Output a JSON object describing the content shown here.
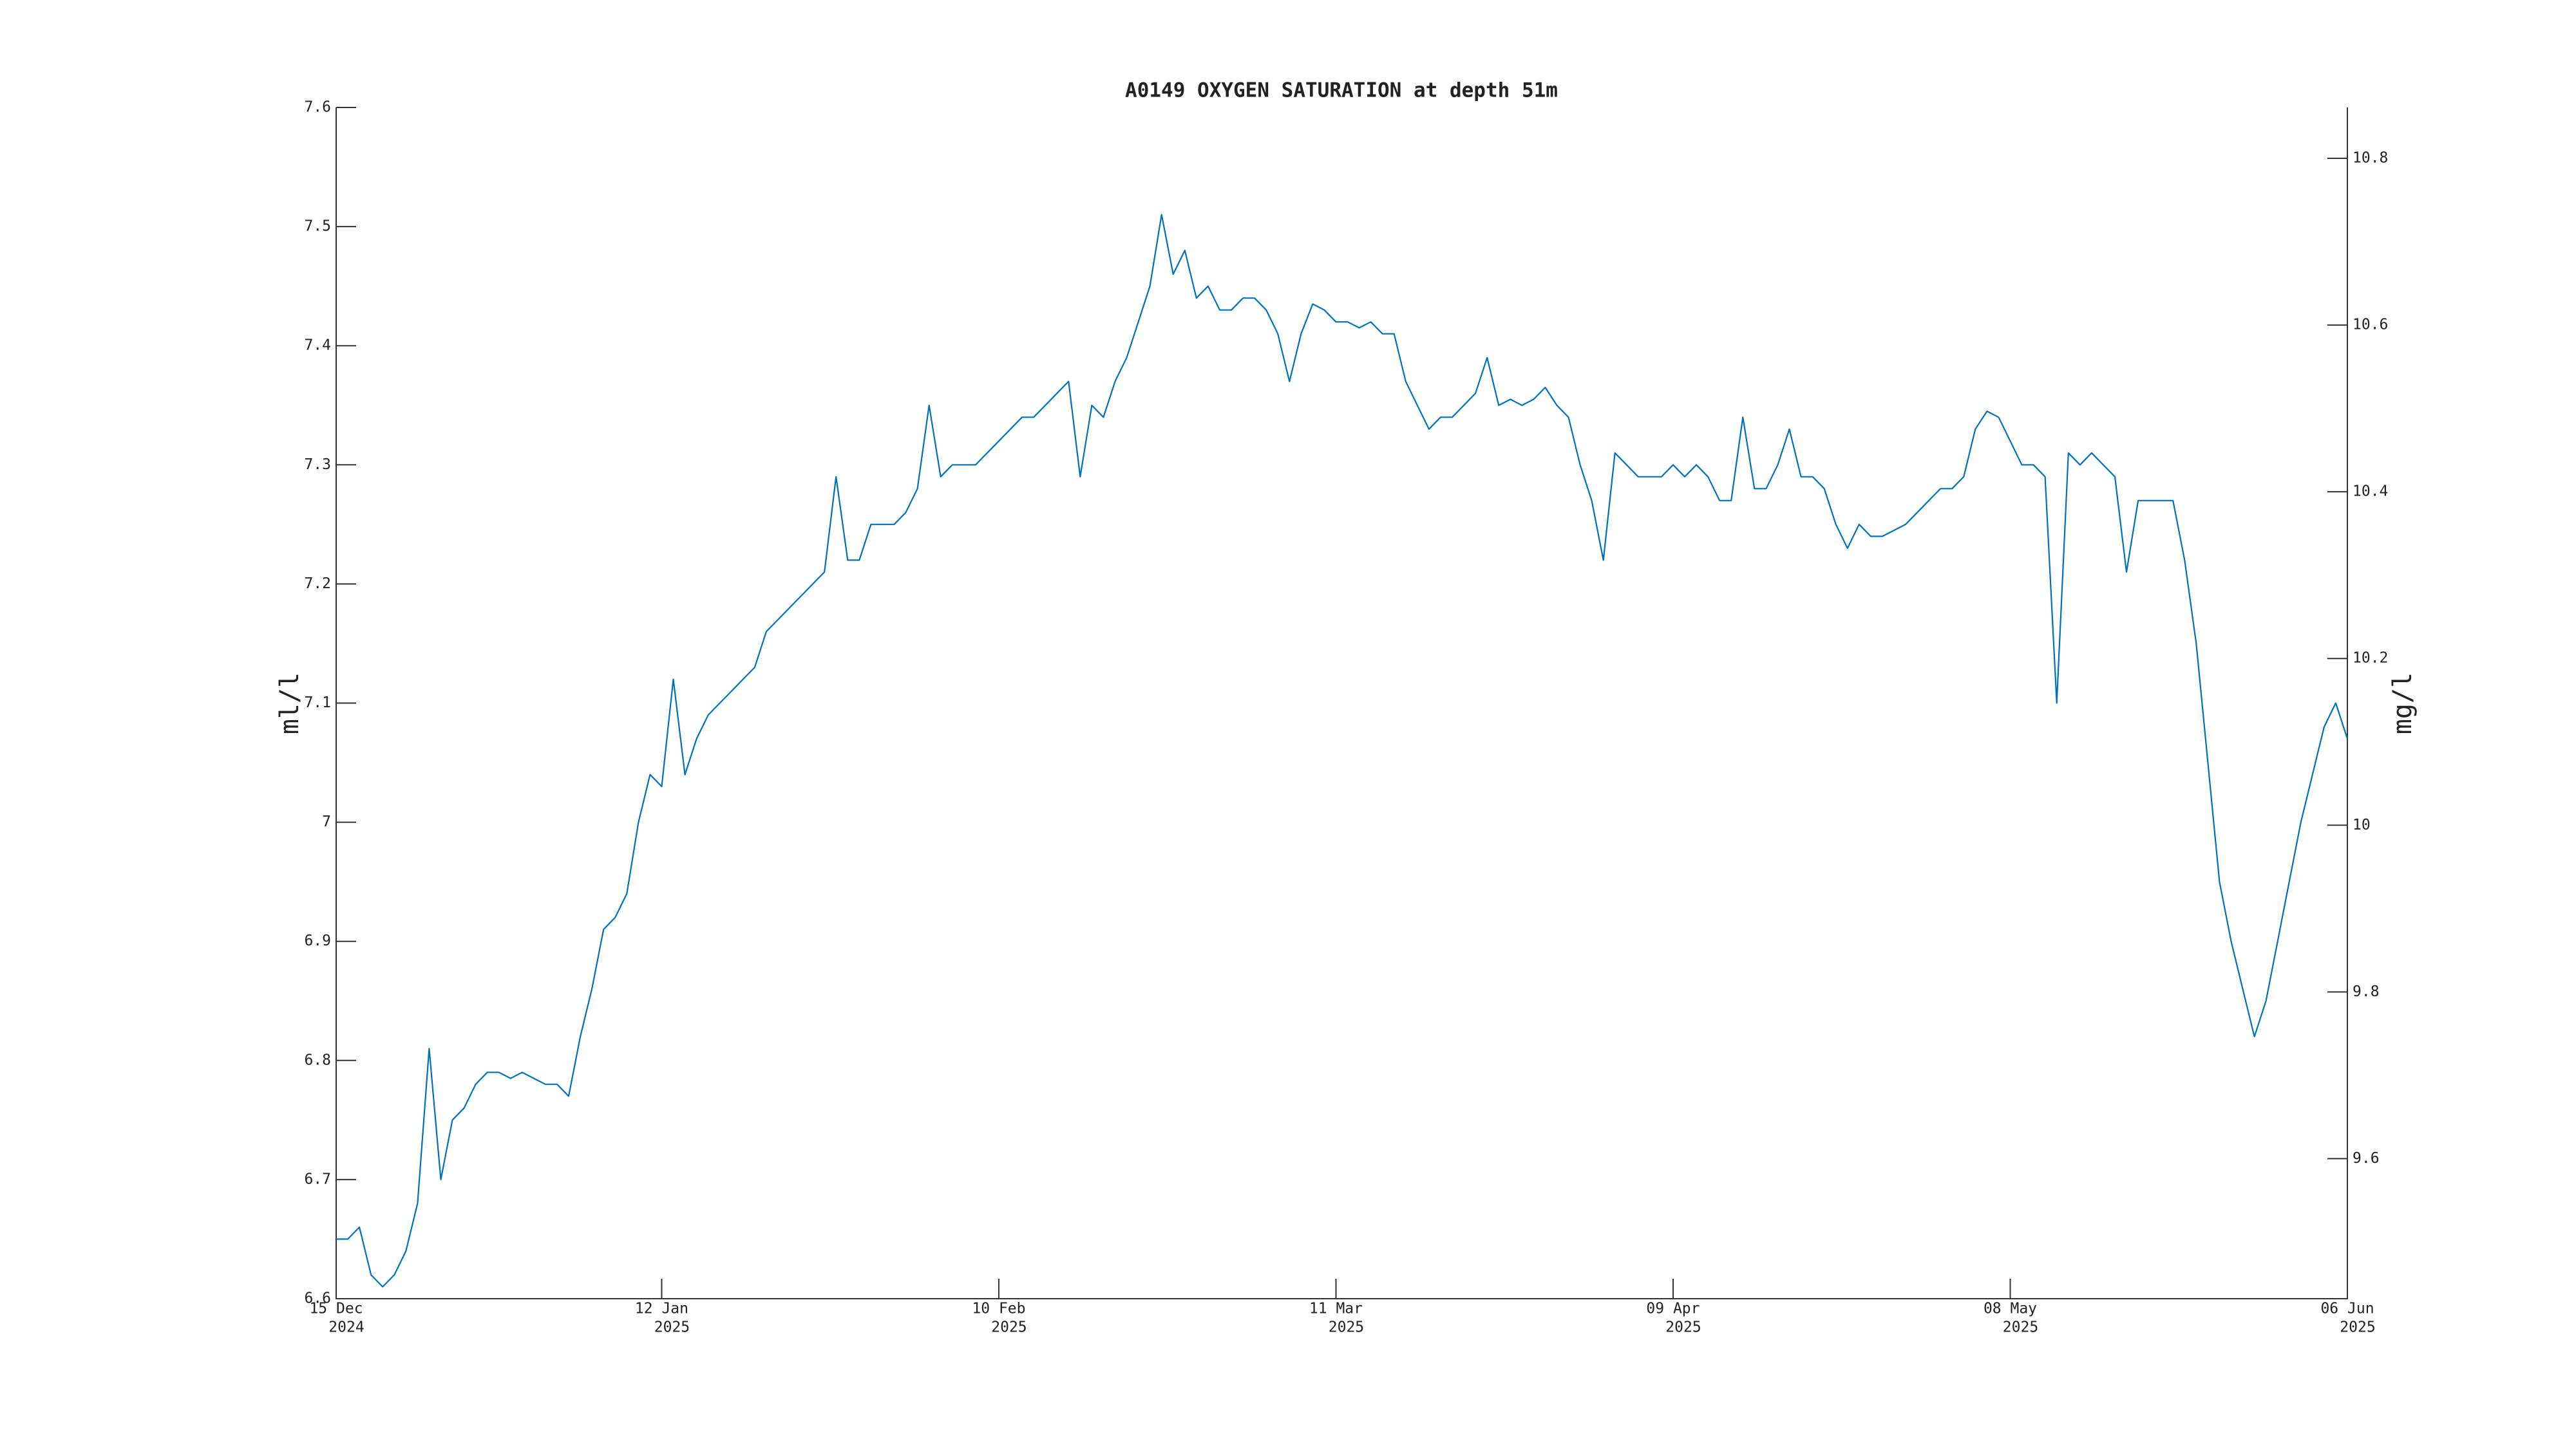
{
  "chart_data": {
    "type": "line",
    "title": "A0149 OXYGEN SATURATION at depth 51m",
    "ylabel": "ml/l",
    "y2label": "mg/l",
    "xlim": [
      "2024-12-15",
      "2025-06-06"
    ],
    "xticks": [
      {
        "value": "2024-12-15",
        "label": [
          "15 Dec",
          "2024"
        ]
      },
      {
        "value": "2025-01-12",
        "label": [
          "12 Jan",
          "2025"
        ]
      },
      {
        "value": "2025-02-10",
        "label": [
          "10 Feb",
          "2025"
        ]
      },
      {
        "value": "2025-03-11",
        "label": [
          "11 Mar",
          "2025"
        ]
      },
      {
        "value": "2025-04-09",
        "label": [
          "09 Apr",
          "2025"
        ]
      },
      {
        "value": "2025-05-08",
        "label": [
          "08 May",
          "2025"
        ]
      },
      {
        "value": "2025-06-06",
        "label": [
          "06 Jun",
          "2025"
        ]
      }
    ],
    "ylim": [
      6.6,
      7.6
    ],
    "yticks": [
      6.6,
      6.7,
      6.8,
      6.9,
      7,
      7.1,
      7.2,
      7.3,
      7.4,
      7.5,
      7.6
    ],
    "y2lim": [
      9.432,
      10.861
    ],
    "y2ticks": [
      9.6,
      9.8,
      10,
      10.2,
      10.4,
      10.6,
      10.8
    ],
    "grid": false,
    "x": [
      "2024-12-15",
      "2024-12-16",
      "2024-12-17",
      "2024-12-18",
      "2024-12-19",
      "2024-12-20",
      "2024-12-21",
      "2024-12-22",
      "2024-12-23",
      "2024-12-24",
      "2024-12-25",
      "2024-12-26",
      "2024-12-27",
      "2024-12-28",
      "2024-12-29",
      "2024-12-30",
      "2024-12-31",
      "2025-01-01",
      "2025-01-02",
      "2025-01-03",
      "2025-01-04",
      "2025-01-05",
      "2025-01-06",
      "2025-01-07",
      "2025-01-08",
      "2025-01-09",
      "2025-01-10",
      "2025-01-11",
      "2025-01-12",
      "2025-01-13",
      "2025-01-14",
      "2025-01-15",
      "2025-01-16",
      "2025-01-17",
      "2025-01-18",
      "2025-01-19",
      "2025-01-20",
      "2025-01-21",
      "2025-01-22",
      "2025-01-23",
      "2025-01-24",
      "2025-01-25",
      "2025-01-26",
      "2025-01-27",
      "2025-01-28",
      "2025-01-29",
      "2025-01-30",
      "2025-01-31",
      "2025-02-01",
      "2025-02-02",
      "2025-02-03",
      "2025-02-04",
      "2025-02-05",
      "2025-02-06",
      "2025-02-07",
      "2025-02-08",
      "2025-02-09",
      "2025-02-10",
      "2025-02-11",
      "2025-02-12",
      "2025-02-13",
      "2025-02-14",
      "2025-02-15",
      "2025-02-16",
      "2025-02-17",
      "2025-02-18",
      "2025-02-19",
      "2025-02-20",
      "2025-02-21",
      "2025-02-22",
      "2025-02-23",
      "2025-02-24",
      "2025-02-25",
      "2025-02-26",
      "2025-02-27",
      "2025-02-28",
      "2025-03-01",
      "2025-03-02",
      "2025-03-03",
      "2025-03-04",
      "2025-03-05",
      "2025-03-06",
      "2025-03-07",
      "2025-03-08",
      "2025-03-09",
      "2025-03-10",
      "2025-03-11",
      "2025-03-12",
      "2025-03-13",
      "2025-03-14",
      "2025-03-15",
      "2025-03-16",
      "2025-03-17",
      "2025-03-18",
      "2025-03-19",
      "2025-03-20",
      "2025-03-21",
      "2025-03-22",
      "2025-03-23",
      "2025-03-24",
      "2025-03-25",
      "2025-03-26",
      "2025-03-27",
      "2025-03-28",
      "2025-03-29",
      "2025-03-30",
      "2025-03-31",
      "2025-04-01",
      "2025-04-02",
      "2025-04-03",
      "2025-04-04",
      "2025-04-05",
      "2025-04-06",
      "2025-04-07",
      "2025-04-08",
      "2025-04-09",
      "2025-04-10",
      "2025-04-11",
      "2025-04-12",
      "2025-04-13",
      "2025-04-14",
      "2025-04-15",
      "2025-04-16",
      "2025-04-17",
      "2025-04-18",
      "2025-04-19",
      "2025-04-20",
      "2025-04-21",
      "2025-04-22",
      "2025-04-23",
      "2025-04-24",
      "2025-04-25",
      "2025-04-26",
      "2025-04-27",
      "2025-04-28",
      "2025-04-29",
      "2025-04-30",
      "2025-05-01",
      "2025-05-02",
      "2025-05-03",
      "2025-05-04",
      "2025-05-05",
      "2025-05-06",
      "2025-05-07",
      "2025-05-08",
      "2025-05-09",
      "2025-05-10",
      "2025-05-11",
      "2025-05-12",
      "2025-05-13",
      "2025-05-14",
      "2025-05-15",
      "2025-05-16",
      "2025-05-17",
      "2025-05-18",
      "2025-05-19",
      "2025-05-20",
      "2025-05-21",
      "2025-05-22",
      "2025-05-23",
      "2025-05-24",
      "2025-05-25",
      "2025-05-26",
      "2025-05-27",
      "2025-05-28",
      "2025-05-29",
      "2025-05-30",
      "2025-05-31",
      "2025-06-01",
      "2025-06-02",
      "2025-06-03",
      "2025-06-04",
      "2025-06-05",
      "2025-06-06"
    ],
    "series": [
      {
        "color": "#0072bd",
        "values": [
          6.65,
          6.65,
          6.66,
          6.62,
          6.61,
          6.62,
          6.64,
          6.68,
          6.81,
          6.7,
          6.75,
          6.76,
          6.78,
          6.79,
          6.79,
          6.785,
          6.79,
          6.785,
          6.78,
          6.78,
          6.77,
          6.82,
          6.86,
          6.91,
          6.92,
          6.94,
          7.0,
          7.04,
          7.03,
          7.12,
          7.04,
          7.07,
          7.09,
          7.1,
          7.11,
          7.12,
          7.13,
          7.16,
          7.17,
          7.18,
          7.19,
          7.2,
          7.21,
          7.29,
          7.22,
          7.22,
          7.25,
          7.25,
          7.25,
          7.26,
          7.28,
          7.35,
          7.29,
          7.3,
          7.3,
          7.3,
          7.31,
          7.32,
          7.33,
          7.34,
          7.34,
          7.35,
          7.36,
          7.37,
          7.29,
          7.35,
          7.34,
          7.37,
          7.39,
          7.42,
          7.45,
          7.51,
          7.46,
          7.48,
          7.44,
          7.45,
          7.43,
          7.43,
          7.44,
          7.44,
          7.43,
          7.41,
          7.37,
          7.41,
          7.435,
          7.43,
          7.42,
          7.42,
          7.415,
          7.42,
          7.41,
          7.41,
          7.37,
          7.35,
          7.33,
          7.34,
          7.34,
          7.35,
          7.36,
          7.39,
          7.35,
          7.355,
          7.35,
          7.355,
          7.365,
          7.35,
          7.34,
          7.3,
          7.27,
          7.22,
          7.31,
          7.3,
          7.29,
          7.29,
          7.29,
          7.3,
          7.29,
          7.3,
          7.29,
          7.27,
          7.27,
          7.34,
          7.28,
          7.28,
          7.3,
          7.33,
          7.29,
          7.29,
          7.28,
          7.25,
          7.23,
          7.25,
          7.24,
          7.24,
          7.245,
          7.25,
          7.26,
          7.27,
          7.28,
          7.28,
          7.29,
          7.33,
          7.345,
          7.34,
          7.32,
          7.3,
          7.3,
          7.29,
          7.1,
          7.31,
          7.3,
          7.31,
          7.3,
          7.29,
          7.21,
          7.27,
          7.27,
          7.27,
          7.27,
          7.22,
          7.15,
          7.05,
          6.95,
          6.9,
          6.86,
          6.82,
          6.85,
          6.9,
          6.95,
          7.0,
          7.04,
          7.08,
          7.1,
          7.07
        ]
      }
    ]
  }
}
